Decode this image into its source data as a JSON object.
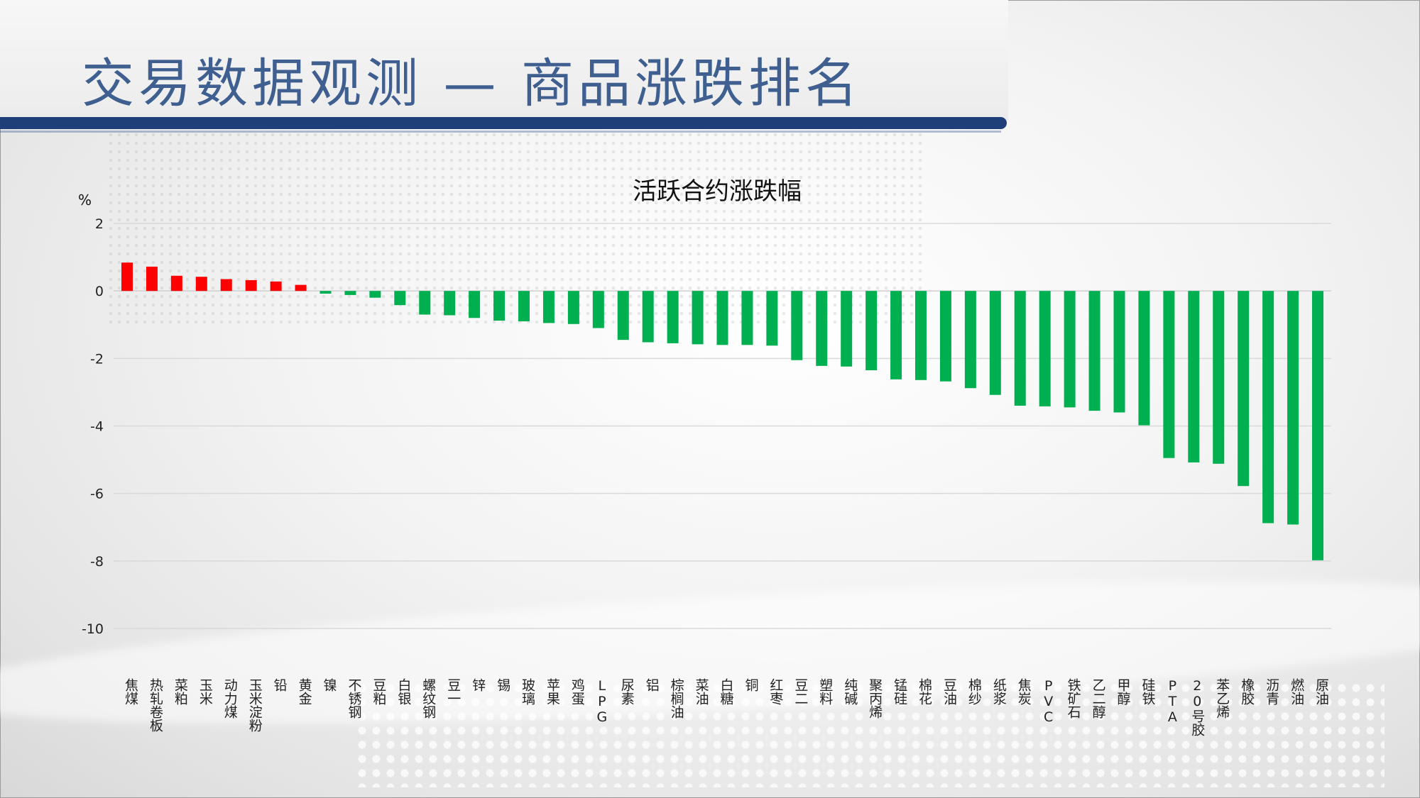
{
  "page": {
    "title": "交易数据观测 — 商品涨跌排名"
  },
  "colors": {
    "up": "#ff0000",
    "down": "#00b050",
    "header": "#1f3f79",
    "title": "#3e5f8f"
  },
  "chart_data": {
    "type": "bar",
    "title": "活跃合约涨跌幅",
    "ylabel": "%",
    "ylim": [
      -10,
      2
    ],
    "yticks": [
      2,
      0,
      -2,
      -4,
      -6,
      -8,
      -10
    ],
    "grid": true,
    "categories": [
      "焦煤",
      "热轧卷板",
      "菜粕",
      "玉米",
      "动力煤",
      "玉米淀粉",
      "铅",
      "黄金",
      "镍",
      "不锈钢",
      "豆粕",
      "白银",
      "螺纹钢",
      "豆一",
      "锌",
      "锡",
      "玻璃",
      "苹果",
      "鸡蛋",
      "LPG",
      "尿素",
      "铝",
      "棕榈油",
      "菜油",
      "白糖",
      "铜",
      "红枣",
      "豆二",
      "塑料",
      "纯碱",
      "聚丙烯",
      "锰硅",
      "棉花",
      "豆油",
      "棉纱",
      "纸浆",
      "焦炭",
      "PVC",
      "铁矿石",
      "乙二醇",
      "甲醇",
      "硅铁",
      "PTA",
      "20号胶",
      "苯乙烯",
      "橡胶",
      "沥青",
      "燃油",
      "原油"
    ],
    "values": [
      0.84,
      0.72,
      0.45,
      0.42,
      0.35,
      0.32,
      0.28,
      0.18,
      -0.08,
      -0.12,
      -0.2,
      -0.42,
      -0.7,
      -0.72,
      -0.8,
      -0.88,
      -0.9,
      -0.95,
      -0.98,
      -1.1,
      -1.45,
      -1.52,
      -1.55,
      -1.58,
      -1.6,
      -1.6,
      -1.62,
      -2.05,
      -2.22,
      -2.24,
      -2.35,
      -2.62,
      -2.64,
      -2.68,
      -2.88,
      -3.08,
      -3.4,
      -3.42,
      -3.45,
      -3.55,
      -3.6,
      -3.98,
      -4.95,
      -5.08,
      -5.12,
      -5.78,
      -6.88,
      -6.92,
      -7.98
    ]
  }
}
